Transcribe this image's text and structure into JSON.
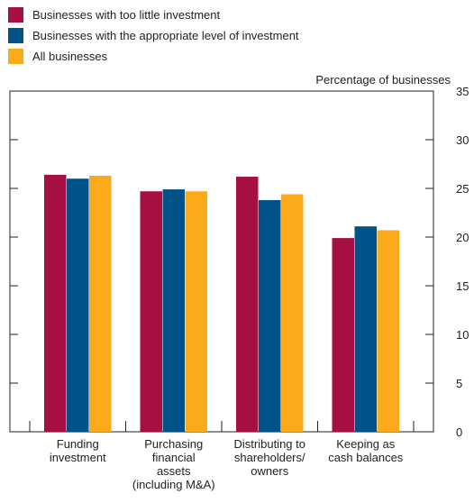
{
  "chart_data": {
    "type": "bar",
    "title": "",
    "xlabel": "",
    "ylabel": "Percentage of businesses",
    "ylim": [
      0,
      35
    ],
    "yticks": [
      0,
      5,
      10,
      15,
      20,
      25,
      30,
      35
    ],
    "categories": [
      [
        "Funding",
        "investment"
      ],
      [
        "Purchasing",
        "financial",
        "assets",
        "(including M&A)"
      ],
      [
        "Distributing to",
        "shareholders/",
        "owners"
      ],
      [
        "Keeping as",
        "cash balances"
      ]
    ],
    "series": [
      {
        "name": "Businesses with too little investment",
        "color": "#a50f41",
        "values": [
          26.4,
          24.7,
          26.2,
          19.9
        ]
      },
      {
        "name": "Businesses with the appropriate level of investment",
        "color": "#005288",
        "values": [
          26.0,
          24.9,
          23.8,
          21.1
        ]
      },
      {
        "name": "All businesses",
        "color": "#fbaa19",
        "values": [
          26.3,
          24.7,
          24.4,
          20.7
        ]
      }
    ],
    "grid": false,
    "legend_position": "top-left"
  }
}
